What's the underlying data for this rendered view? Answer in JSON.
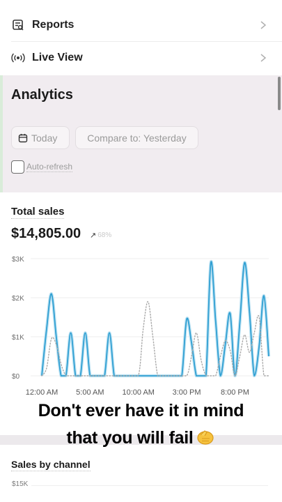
{
  "nav": {
    "reports_label": "Reports",
    "live_view_label": "Live View"
  },
  "analytics": {
    "title": "Analytics",
    "date_range": "Today",
    "compare_label": "Compare to: Yesterday",
    "auto_refresh_label": "Auto-refresh",
    "auto_refresh_checked": false
  },
  "total_sales": {
    "title": "Total sales",
    "value": "$14,805.00",
    "change": "68%",
    "change_direction": "up"
  },
  "chart_data": {
    "type": "line",
    "title": "",
    "xlabel": "",
    "ylabel": "",
    "x_tick_labels": [
      "12:00 AM",
      "5:00 AM",
      "10:00 AM",
      "3:00 PM",
      "8:00 PM"
    ],
    "y_tick_labels": [
      "$0",
      "$1K",
      "$2K",
      "$3K"
    ],
    "ylim": [
      0,
      3000
    ],
    "x_unit": "hour of day",
    "grid": true,
    "series": [
      {
        "style": "solid",
        "color": "#2f9fd2",
        "points": [
          [
            0,
            0
          ],
          [
            0.5,
            1200
          ],
          [
            1,
            2100
          ],
          [
            1.5,
            1000
          ],
          [
            2,
            0
          ],
          [
            2.5,
            0
          ],
          [
            3,
            1100
          ],
          [
            3.5,
            0
          ],
          [
            4,
            0
          ],
          [
            4.5,
            1100
          ],
          [
            5,
            0
          ],
          [
            5.5,
            0
          ],
          [
            6,
            0
          ],
          [
            6.5,
            0
          ],
          [
            7,
            1100
          ],
          [
            7.5,
            0
          ],
          [
            8,
            0
          ],
          [
            8.5,
            0
          ],
          [
            9,
            0
          ],
          [
            9.5,
            0
          ],
          [
            10,
            0
          ],
          [
            10.5,
            0
          ],
          [
            11,
            0
          ],
          [
            11.5,
            0
          ],
          [
            12,
            0
          ],
          [
            12.5,
            0
          ],
          [
            13,
            0
          ],
          [
            13.5,
            0
          ],
          [
            14,
            0
          ],
          [
            14.5,
            0
          ],
          [
            15,
            1450
          ],
          [
            15.5,
            850
          ],
          [
            16,
            0
          ],
          [
            16.5,
            0
          ],
          [
            17,
            0
          ],
          [
            17.5,
            2900
          ],
          [
            18,
            1400
          ],
          [
            18.5,
            0
          ],
          [
            19,
            800
          ],
          [
            19.5,
            1600
          ],
          [
            20,
            0
          ],
          [
            20.5,
            1350
          ],
          [
            21,
            2900
          ],
          [
            21.5,
            1650
          ],
          [
            22,
            0
          ],
          [
            22.5,
            750
          ],
          [
            23,
            2050
          ],
          [
            23.5,
            500
          ]
        ]
      },
      {
        "style": "dotted",
        "color": "#a8a8a8",
        "points": [
          [
            0,
            0
          ],
          [
            0.5,
            200
          ],
          [
            1,
            950
          ],
          [
            1.5,
            800
          ],
          [
            2,
            300
          ],
          [
            2.5,
            0
          ],
          [
            3,
            0
          ],
          [
            4,
            0
          ],
          [
            5,
            0
          ],
          [
            6,
            0
          ],
          [
            7,
            0
          ],
          [
            8,
            0
          ],
          [
            9,
            0
          ],
          [
            10,
            0
          ],
          [
            10.5,
            1200
          ],
          [
            11,
            1900
          ],
          [
            11.5,
            1000
          ],
          [
            12,
            0
          ],
          [
            12.5,
            0
          ],
          [
            13,
            0
          ],
          [
            14,
            0
          ],
          [
            15,
            0
          ],
          [
            15.5,
            500
          ],
          [
            16,
            1100
          ],
          [
            16.5,
            400
          ],
          [
            17,
            0
          ],
          [
            17.5,
            0
          ],
          [
            18,
            0
          ],
          [
            18.5,
            500
          ],
          [
            19,
            900
          ],
          [
            19.5,
            650
          ],
          [
            20,
            0
          ],
          [
            20.5,
            500
          ],
          [
            21,
            1050
          ],
          [
            21.5,
            600
          ],
          [
            22,
            1100
          ],
          [
            22.5,
            1500
          ],
          [
            23,
            0
          ],
          [
            23.5,
            0
          ]
        ]
      }
    ]
  },
  "sales_by_channel": {
    "title": "Sales by channel",
    "first_tick": "$15K"
  },
  "caption": {
    "line1": "Don't ever have it in mind",
    "line2": "that you will fail"
  }
}
